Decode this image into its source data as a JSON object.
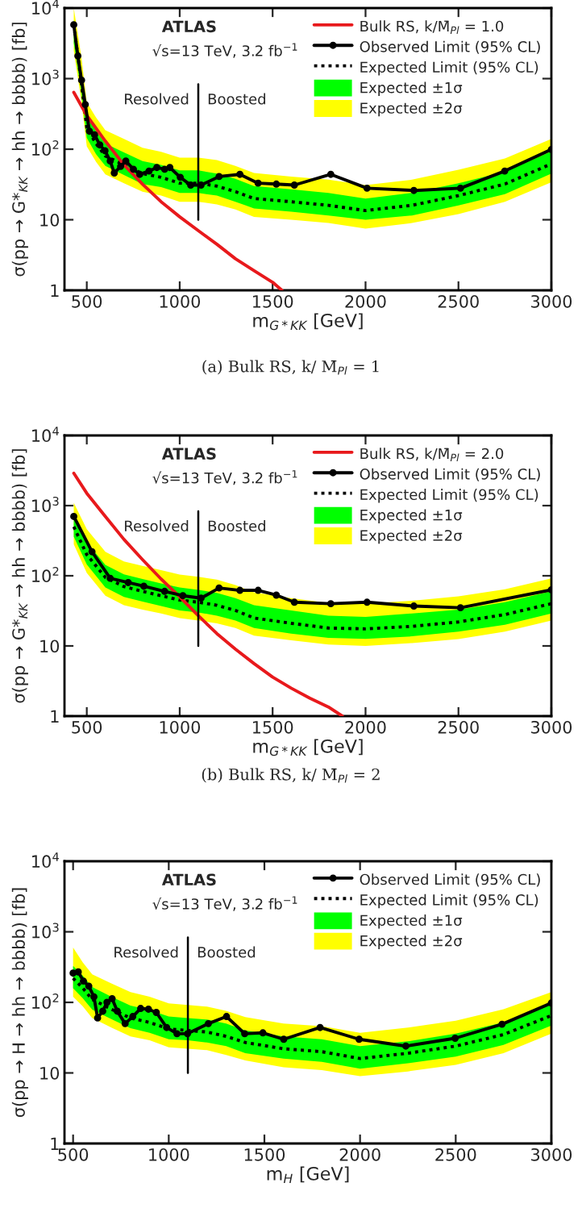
{
  "chart_data": [
    {
      "type": "line",
      "xlabel": "m$_{G*KK}$ [GeV]",
      "ylabel": "σ(pp → G*$_{KK}$ → hh → bbbb) [fb]",
      "log": "y",
      "grid": false,
      "legend": "top right",
      "xlim": [
        380,
        3000
      ],
      "xticks": [
        500,
        1000,
        1500,
        2000,
        2500,
        3000
      ],
      "ylim": [
        1,
        10000
      ],
      "yticks": [
        1,
        10,
        {
          "value": 100,
          "label": "10$^{2}$"
        },
        {
          "value": 1000,
          "label": "10$^{3}$"
        },
        {
          "value": 10000,
          "label": "10$^{4}$"
        }
      ],
      "ref_lines": [
        {
          "axis": "x",
          "value": 1100
        }
      ],
      "annotations": [
        "ATLAS",
        "√s=13 TeV, 3.2 fb$^{−1}$",
        "Resolved",
        "Boosted",
        "(a) Bulk RS, k/ M̄$_{Pl}$ = 1"
      ],
      "series": [
        {
          "name": "Expected ±2σ",
          "type": "line",
          "color": "#ffff00",
          "x": [
            430,
            470,
            500,
            550,
            600,
            700,
            800,
            900,
            1000,
            1100,
            1200,
            1300,
            1400,
            1600,
            1800,
            2000,
            2250,
            2500,
            2750,
            3000
          ],
          "values": [
            null,
            null,
            null,
            null,
            null,
            null,
            null,
            null,
            null,
            null,
            null,
            null,
            null,
            null,
            null,
            null,
            null,
            null,
            null,
            null
          ],
          "lower": [
            2500,
            500,
            110,
            66,
            44,
            33,
            25,
            22,
            18,
            18,
            16.5,
            14,
            11,
            10,
            9,
            7.5,
            9,
            12,
            18,
            34
          ],
          "upper": [
            10000,
            2100,
            460,
            280,
            185,
            140,
            105,
            92,
            76,
            76,
            70,
            58,
            46,
            41,
            37,
            31,
            37,
            51,
            74,
            140
          ]
        },
        {
          "name": "Expected ±1σ",
          "type": "line",
          "color": "#00ff00",
          "x": [
            430,
            470,
            500,
            550,
            600,
            700,
            800,
            900,
            1000,
            1100,
            1200,
            1300,
            1400,
            1600,
            1800,
            2000,
            2250,
            2500,
            2750,
            3000
          ],
          "values": [
            null,
            null,
            null,
            null,
            null,
            null,
            null,
            null,
            null,
            null,
            null,
            null,
            null,
            null,
            null,
            null,
            null,
            null,
            null,
            null
          ],
          "lower": [
            3200,
            650,
            145,
            85,
            58,
            43,
            32,
            29,
            24,
            24,
            22,
            18,
            14.5,
            13,
            11.5,
            10,
            11.5,
            16,
            23,
            45
          ],
          "upper": [
            6800,
            1350,
            300,
            180,
            120,
            90,
            68,
            60,
            50,
            50,
            45,
            38,
            30,
            27,
            24,
            20,
            24,
            33,
            48,
            93
          ]
        },
        {
          "name": "Expected Limit (95% CL)",
          "type": "line",
          "color": "#000000",
          "line_style": "dotted",
          "marker": "none",
          "x": [
            430,
            470,
            500,
            550,
            600,
            700,
            800,
            900,
            1000,
            1100,
            1200,
            1300,
            1400,
            1600,
            1800,
            2000,
            2250,
            2500,
            2750,
            3000
          ],
          "values": [
            5800,
            900,
            200,
            120,
            80,
            60,
            45,
            40,
            33,
            33,
            30,
            25,
            20,
            18,
            16,
            13.5,
            16,
            22,
            32,
            62
          ]
        },
        {
          "name": "Bulk RS, k/M̄$_{Pl}$ = 1.0",
          "type": "line",
          "color": "#e8191c",
          "line_style": "solid",
          "marker": "none",
          "x": [
            430,
            500,
            600,
            700,
            800,
            900,
            1000,
            1100,
            1200,
            1300,
            1400,
            1500,
            1550
          ],
          "values": [
            640,
            300,
            130,
            60,
            32,
            18,
            11,
            7,
            4.5,
            2.8,
            1.9,
            1.3,
            1.0
          ]
        },
        {
          "name": "Observed Limit (95% CL)",
          "type": "line",
          "color": "#000000",
          "line_style": "solid",
          "marker": "circle",
          "x": [
            430,
            452,
            472,
            492,
            514,
            542,
            570,
            598,
            626,
            648,
            682,
            710,
            751,
            785,
            835,
            877,
            919,
            947,
            1003,
            1059,
            1115,
            1212,
            1324,
            1422,
            1520,
            1617,
            1813,
            2008,
            2260,
            2511,
            2749,
            3000
          ],
          "values": [
            5800,
            2100,
            950,
            430,
            180,
            160,
            115,
            95,
            68,
            46,
            57,
            68,
            52,
            44,
            49,
            55,
            52,
            55,
            40,
            31,
            31,
            41,
            44,
            33,
            32,
            31,
            44,
            28,
            26,
            28,
            49,
            99
          ]
        }
      ]
    },
    {
      "type": "line",
      "xlabel": "m$_{G*KK}$ [GeV]",
      "ylabel": "σ(pp → G*$_{KK}$ → hh → bbbb) [fb]",
      "log": "y",
      "grid": false,
      "legend": "top right",
      "xlim": [
        380,
        3000
      ],
      "xticks": [
        500,
        1000,
        1500,
        2000,
        2500,
        3000
      ],
      "ylim": [
        1,
        10000
      ],
      "yticks": [
        1,
        10,
        {
          "value": 100,
          "label": "10$^{2}$"
        },
        {
          "value": 1000,
          "label": "10$^{3}$"
        },
        {
          "value": 10000,
          "label": "10$^{4}$"
        }
      ],
      "ref_lines": [
        {
          "axis": "x",
          "value": 1100
        }
      ],
      "annotations": [
        "ATLAS",
        "√s=13 TeV, 3.2 fb$^{−1}$",
        "Resolved",
        "Boosted",
        "(b) Bulk RS, k/ M̄$_{Pl}$ = 2"
      ],
      "series": [
        {
          "name": "Expected ±2σ",
          "type": "line",
          "color": "#ffff00",
          "x": [
            430,
            500,
            600,
            700,
            800,
            900,
            1000,
            1100,
            1200,
            1300,
            1400,
            1600,
            1800,
            2000,
            2250,
            2500,
            2750,
            3000
          ],
          "values": [
            null,
            null,
            null,
            null,
            null,
            null,
            null,
            null,
            null,
            null,
            null,
            null,
            null,
            null,
            null,
            null,
            null,
            null
          ],
          "lower": [
            280,
            110,
            52,
            38,
            33,
            29,
            25,
            23,
            21,
            18,
            14,
            12,
            10.5,
            10,
            11,
            12.5,
            16,
            23
          ],
          "upper": [
            1100,
            460,
            220,
            160,
            138,
            120,
            104,
            97,
            88,
            74,
            58,
            48,
            41,
            40,
            44,
            51,
            64,
            92
          ]
        },
        {
          "name": "Expected ±1σ",
          "type": "line",
          "color": "#00ff00",
          "x": [
            430,
            500,
            600,
            700,
            800,
            900,
            1000,
            1100,
            1200,
            1300,
            1400,
            1600,
            1800,
            2000,
            2250,
            2500,
            2750,
            3000
          ],
          "values": [
            null,
            null,
            null,
            null,
            null,
            null,
            null,
            null,
            null,
            null,
            null,
            null,
            null,
            null,
            null,
            null,
            null,
            null
          ],
          "lower": [
            360,
            145,
            68,
            50,
            43,
            37,
            32,
            30,
            27,
            23,
            18,
            15,
            13,
            12.6,
            13.7,
            16,
            20,
            29
          ],
          "upper": [
            750,
            300,
            143,
            105,
            90,
            78,
            68,
            63,
            57,
            48,
            38,
            32,
            27,
            26,
            29,
            33,
            42,
            60
          ]
        },
        {
          "name": "Expected Limit (95% CL)",
          "type": "line",
          "color": "#000000",
          "line_style": "dotted",
          "marker": "none",
          "x": [
            430,
            500,
            600,
            700,
            800,
            900,
            1000,
            1100,
            1200,
            1300,
            1400,
            1600,
            1800,
            2000,
            2250,
            2500,
            2750,
            3000
          ],
          "values": [
            500,
            200,
            95,
            70,
            60,
            52,
            45,
            42,
            38,
            32,
            25,
            21,
            18,
            17.5,
            19,
            22,
            28,
            40
          ]
        },
        {
          "name": "Bulk RS, k/M̄$_{Pl}$ = 2.0",
          "type": "line",
          "color": "#e8191c",
          "line_style": "solid",
          "marker": "none",
          "x": [
            430,
            500,
            600,
            700,
            800,
            900,
            1000,
            1100,
            1200,
            1300,
            1400,
            1500,
            1600,
            1700,
            1800,
            1875
          ],
          "values": [
            2900,
            1500,
            700,
            330,
            170,
            90,
            50,
            27,
            15,
            9,
            5.6,
            3.6,
            2.5,
            1.8,
            1.35,
            1.0
          ]
        },
        {
          "name": "Observed Limit (95% CL)",
          "type": "line",
          "color": "#000000",
          "line_style": "solid",
          "marker": "circle",
          "x": [
            430,
            528,
            626,
            723,
            807,
            919,
            1017,
            1115,
            1212,
            1324,
            1422,
            1520,
            1617,
            1813,
            2008,
            2260,
            2511,
            3000
          ],
          "values": [
            700,
            220,
            92,
            80,
            71,
            60,
            52,
            48,
            67,
            62,
            62,
            53,
            42,
            40,
            42,
            37,
            35,
            63
          ]
        }
      ]
    },
    {
      "type": "line",
      "xlabel": "m$_{H}$ [GeV]",
      "ylabel": "σ(pp → H → hh → bbbb) [fb]",
      "log": "y",
      "grid": false,
      "legend": "top right",
      "xlim": [
        455,
        3000
      ],
      "xticks": [
        500,
        1000,
        1500,
        2000,
        2500,
        3000
      ],
      "ylim": [
        1,
        10000
      ],
      "yticks": [
        1,
        10,
        {
          "value": 100,
          "label": "10$^{2}$"
        },
        {
          "value": 1000,
          "label": "10$^{3}$"
        },
        {
          "value": 10000,
          "label": "10$^{4}$"
        }
      ],
      "ref_lines": [
        {
          "axis": "x",
          "value": 1100
        }
      ],
      "annotations": [
        "ATLAS",
        "√s=13 TeV, 3.2 fb$^{−1}$",
        "Resolved",
        "Boosted"
      ],
      "series": [
        {
          "name": "Expected ±2σ",
          "type": "line",
          "color": "#ffff00",
          "x": [
            500,
            550,
            600,
            700,
            800,
            900,
            1000,
            1100,
            1200,
            1300,
            1400,
            1600,
            1800,
            2000,
            2250,
            2500,
            2750,
            3000
          ],
          "values": [
            null,
            null,
            null,
            null,
            null,
            null,
            null,
            null,
            null,
            null,
            null,
            null,
            null,
            null,
            null,
            null,
            null,
            null
          ],
          "lower": [
            120,
            88,
            60,
            44,
            33,
            29,
            23,
            22,
            21,
            18,
            15,
            12,
            11,
            9,
            10.5,
            13,
            19,
            36
          ],
          "upper": [
            600,
            370,
            250,
            185,
            140,
            120,
            97,
            92,
            87,
            76,
            62,
            50,
            46,
            37,
            44,
            55,
            80,
            140
          ]
        },
        {
          "name": "Expected ±1σ",
          "type": "line",
          "color": "#00ff00",
          "x": [
            500,
            550,
            600,
            700,
            800,
            900,
            1000,
            1100,
            1200,
            1300,
            1400,
            1600,
            1800,
            2000,
            2250,
            2500,
            2750,
            3000
          ],
          "values": [
            null,
            null,
            null,
            null,
            null,
            null,
            null,
            null,
            null,
            null,
            null,
            null,
            null,
            null,
            null,
            null,
            null,
            null
          ],
          "lower": [
            158,
            115,
            79,
            58,
            43,
            37,
            30,
            29,
            27,
            24,
            19,
            16,
            14.4,
            11.5,
            13.7,
            17,
            25,
            47
          ],
          "upper": [
            330,
            240,
            165,
            120,
            90,
            78,
            63,
            60,
            57,
            50,
            40,
            33,
            30,
            24,
            28,
            36,
            52,
            98
          ]
        },
        {
          "name": "Expected Limit (95% CL)",
          "type": "line",
          "color": "#000000",
          "line_style": "dotted",
          "marker": "none",
          "x": [
            500,
            550,
            600,
            700,
            800,
            900,
            1000,
            1100,
            1200,
            1300,
            1400,
            1600,
            1800,
            2000,
            2250,
            2500,
            2750,
            3000
          ],
          "values": [
            220,
            160,
            110,
            80,
            60,
            52,
            42,
            40,
            38,
            33,
            27,
            22,
            20,
            16,
            19,
            24,
            35,
            65
          ]
        },
        {
          "name": "Observed Limit (95% CL)",
          "type": "line",
          "color": "#000000",
          "line_style": "solid",
          "marker": "circle",
          "x": [
            500,
            527,
            554,
            582,
            609,
            628,
            655,
            677,
            704,
            731,
            772,
            812,
            853,
            894,
            935,
            989,
            1043,
            1098,
            1207,
            1302,
            1397,
            1492,
            1601,
            1791,
            1995,
            2239,
            2497,
            2742,
            3000
          ],
          "values": [
            260,
            270,
            200,
            170,
            120,
            60,
            75,
            100,
            113,
            75,
            50,
            63,
            82,
            80,
            72,
            44,
            36,
            36,
            50,
            63,
            36,
            37,
            30,
            44,
            30,
            24,
            31,
            49,
            98
          ]
        }
      ]
    }
  ]
}
